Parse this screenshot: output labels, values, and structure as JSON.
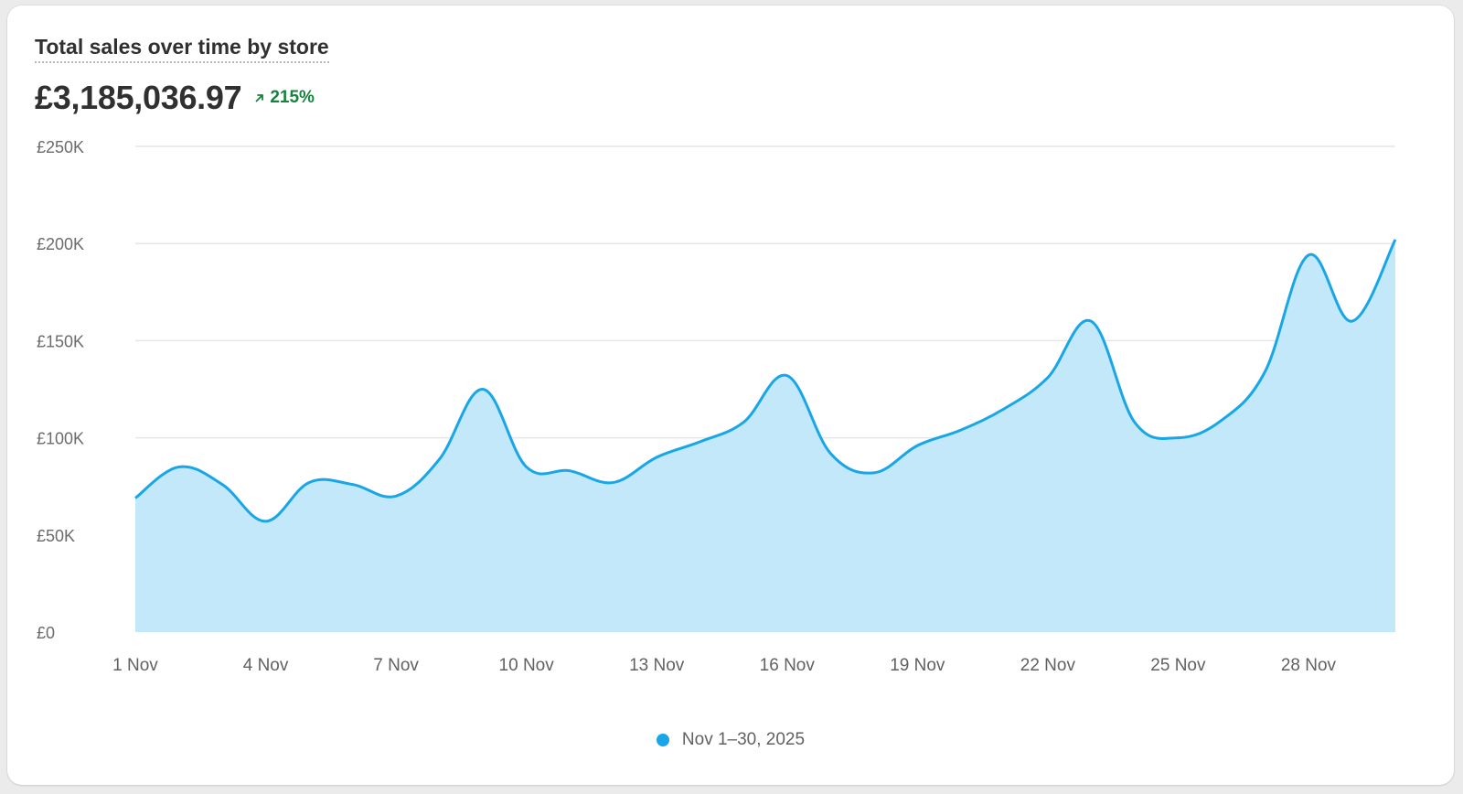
{
  "card": {
    "title": "Total sales over time by store",
    "total": "£3,185,036.97",
    "change": "215%"
  },
  "colors": {
    "line": "#19a6e8",
    "area": "#c2e8f9",
    "grid": "#e6e6e6",
    "positive": "#14843c"
  },
  "icons": {
    "change": "arrow-up-right-icon"
  },
  "chart_data": {
    "type": "area",
    "title": "Total sales over time by store",
    "xlabel": "",
    "ylabel": "",
    "ylim": [
      0,
      250000
    ],
    "yticks": [
      0,
      50000,
      100000,
      150000,
      200000,
      250000
    ],
    "ytick_labels": [
      "£0",
      "£50K",
      "£100K",
      "£150K",
      "£200K",
      "£250K"
    ],
    "xtick_labels": [
      "1 Nov",
      "4 Nov",
      "7 Nov",
      "10 Nov",
      "13 Nov",
      "16 Nov",
      "19 Nov",
      "22 Nov",
      "25 Nov",
      "28 Nov"
    ],
    "xtick_days": [
      1,
      4,
      7,
      10,
      13,
      16,
      19,
      22,
      25,
      28
    ],
    "days": [
      1,
      2,
      3,
      4,
      5,
      6,
      7,
      8,
      9,
      10,
      11,
      12,
      13,
      14,
      15,
      16,
      17,
      18,
      19,
      20,
      21,
      22,
      23,
      24,
      25,
      26,
      27,
      28,
      29,
      30
    ],
    "grid": true,
    "legend": "bottom-center",
    "series": [
      {
        "name": "Nov 1–30, 2025",
        "values": [
          69000,
          85000,
          76000,
          57000,
          77000,
          76000,
          70000,
          89000,
          125000,
          85000,
          83000,
          77000,
          90000,
          98000,
          108000,
          132000,
          92000,
          82000,
          96000,
          104000,
          115000,
          131000,
          160000,
          108000,
          100000,
          109000,
          134000,
          194000,
          160000,
          202000
        ]
      }
    ]
  }
}
